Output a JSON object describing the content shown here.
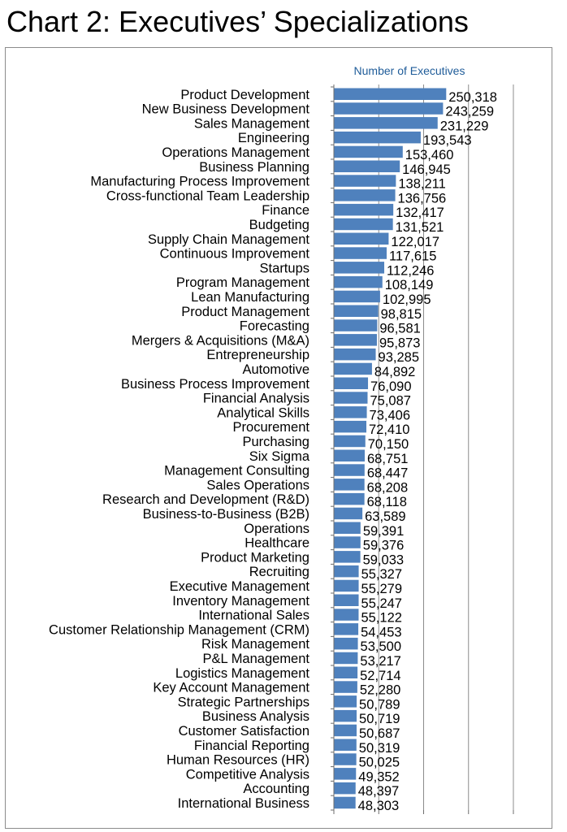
{
  "title": "Chart 2: Executives’ Specializations",
  "colors": {
    "bar": "#4f81bd",
    "axis_title": "#1f5c99",
    "grid": "#8c8c8c"
  },
  "chart_data": {
    "type": "bar",
    "orientation": "horizontal",
    "title": "Chart 2: Executives’ Specializations",
    "xlabel": "Number of Executives",
    "xlim": [
      0,
      400000
    ],
    "grid": "vertical",
    "categories": [
      "Product Development",
      "New Business Development",
      "Sales Management",
      "Engineering",
      "Operations Management",
      "Business Planning",
      "Manufacturing Process Improvement",
      "Cross-functional Team Leadership",
      "Finance",
      "Budgeting",
      "Supply Chain Management",
      "Continuous Improvement",
      "Startups",
      "Program Management",
      "Lean Manufacturing",
      "Product Management",
      "Forecasting",
      "Mergers & Acquisitions (M&A)",
      "Entrepreneurship",
      "Automotive",
      "Business Process Improvement",
      "Financial Analysis",
      "Analytical Skills",
      "Procurement",
      "Purchasing",
      "Six Sigma",
      "Management Consulting",
      "Sales Operations",
      "Research and Development (R&D)",
      "Business-to-Business (B2B)",
      "Operations",
      "Healthcare",
      "Product Marketing",
      "Recruiting",
      "Executive Management",
      "Inventory Management",
      "International Sales",
      "Customer Relationship Management (CRM)",
      "Risk Management",
      "P&L Management",
      "Logistics Management",
      "Key Account Management",
      "Strategic Partnerships",
      "Business Analysis",
      "Customer Satisfaction",
      "Financial Reporting",
      "Human Resources (HR)",
      "Competitive Analysis",
      "Accounting",
      "International Business"
    ],
    "values": [
      250318,
      243259,
      231229,
      193543,
      153460,
      146945,
      138211,
      136756,
      132417,
      131521,
      122017,
      117615,
      112246,
      108149,
      102995,
      98815,
      96581,
      95873,
      93285,
      84892,
      76090,
      75087,
      73406,
      72410,
      70150,
      68751,
      68447,
      68208,
      68118,
      63589,
      59391,
      59376,
      59033,
      55327,
      55279,
      55247,
      55122,
      54453,
      53500,
      53217,
      52714,
      52280,
      50789,
      50719,
      50687,
      50319,
      50025,
      49352,
      48397,
      48303
    ],
    "data_labels": [
      "250,318",
      "243,259",
      "231,229",
      "193,543",
      "153,460",
      "146,945",
      "138,211",
      "136,756",
      "132,417",
      "131,521",
      "122,017",
      "117,615",
      "112,246",
      "108,149",
      "102,995",
      "98,815",
      "96,581",
      "95,873",
      "93,285",
      "84,892",
      "76,090",
      "75,087",
      "73,406",
      "72,410",
      "70,150",
      "68,751",
      "68,447",
      "68,208",
      "68,118",
      "63,589",
      "59,391",
      "59,376",
      "59,033",
      "55,327",
      "55,279",
      "55,247",
      "55,122",
      "54,453",
      "53,500",
      "53,217",
      "52,714",
      "52,280",
      "50,789",
      "50,719",
      "50,687",
      "50,319",
      "50,025",
      "49,352",
      "48,397",
      "48,303"
    ]
  }
}
